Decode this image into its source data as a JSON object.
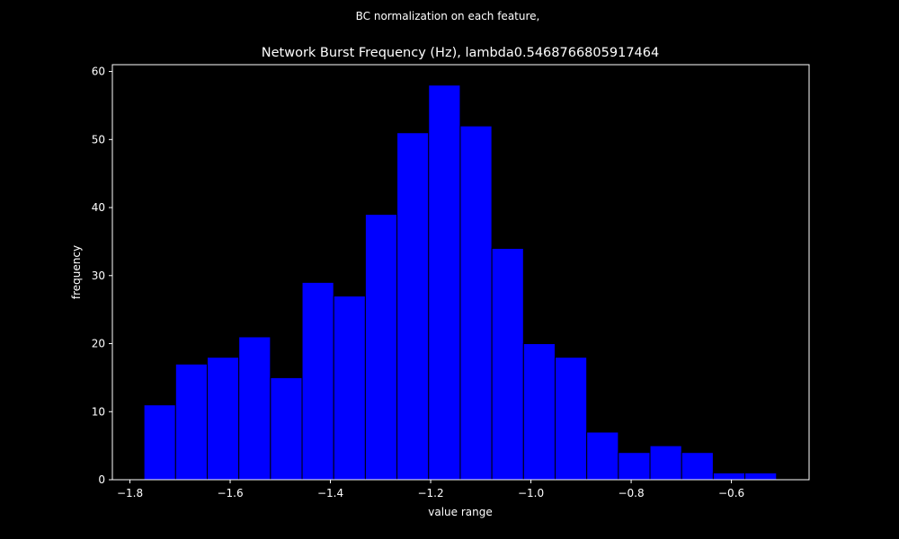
{
  "figure": {
    "suptitle": "BC normalization on each feature,"
  },
  "chart_data": {
    "type": "bar",
    "title": "Network Burst Frequency (Hz), lambda0.5468766805917464",
    "xlabel": "value range",
    "ylabel": "frequency",
    "xlim": [
      -1.835,
      -0.445
    ],
    "ylim": [
      0,
      61
    ],
    "xticks": [
      -1.8,
      -1.6,
      -1.4,
      -1.2,
      -1.0,
      -0.8,
      -0.6
    ],
    "xtick_labels": [
      "−1.8",
      "−1.6",
      "−1.4",
      "−1.2",
      "−1.0",
      "−0.8",
      "−0.6"
    ],
    "yticks": [
      0,
      10,
      20,
      30,
      40,
      50,
      60
    ],
    "ytick_labels": [
      "0",
      "10",
      "20",
      "30",
      "40",
      "50",
      "60"
    ],
    "bin_start": -1.772,
    "bin_width": 0.0631,
    "values": [
      11,
      17,
      18,
      21,
      15,
      29,
      27,
      39,
      51,
      58,
      52,
      34,
      20,
      18,
      7,
      4,
      5,
      4,
      1,
      1
    ],
    "grid": false,
    "legend": "none",
    "colors": {
      "background": "#000000",
      "bar_fill": "#0000ff",
      "bar_edge": "#000000",
      "axes": "#ffffff",
      "text": "#ffffff"
    }
  }
}
